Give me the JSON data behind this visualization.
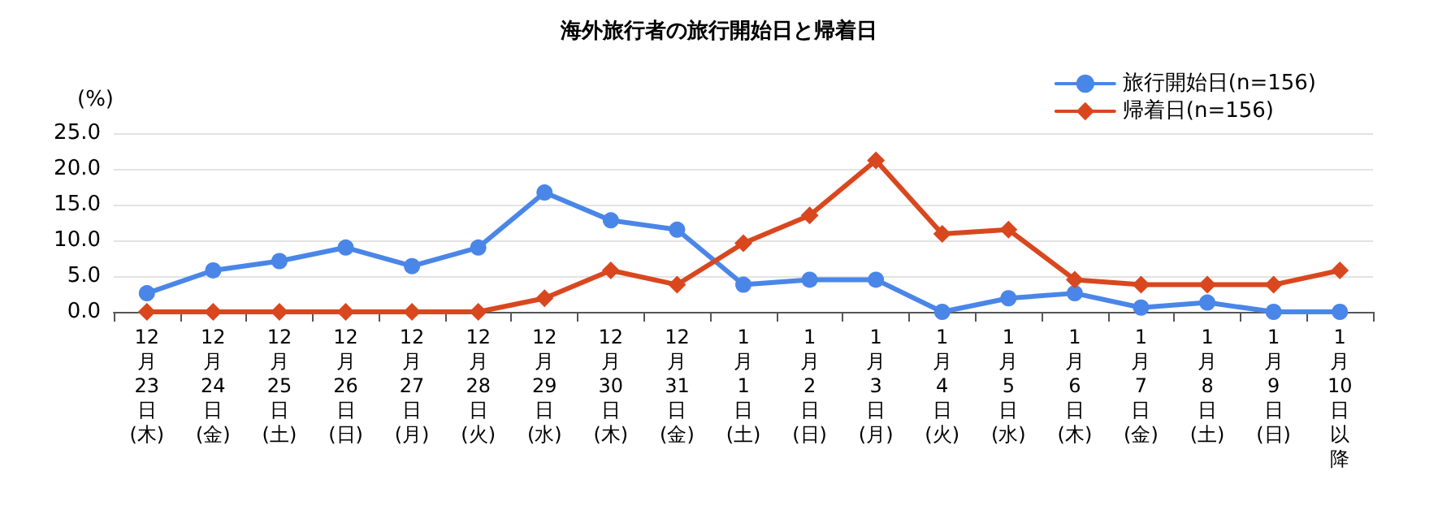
{
  "chart_data": {
    "type": "line",
    "title": "海外旅行者の旅行開始日と帰着日",
    "ylabel": "(%)",
    "categories": [
      "12月23日(木)",
      "12月24日(金)",
      "12月25日(土)",
      "12月26日(日)",
      "12月27日(月)",
      "12月28日(火)",
      "12月29日(水)",
      "12月30日(木)",
      "12月31日(金)",
      "1月1日(土)",
      "1月2日(日)",
      "1月3日(月)",
      "1月4日(火)",
      "1月5日(水)",
      "1月6日(木)",
      "1月7日(金)",
      "1月8日(土)",
      "1月9日(日)",
      "1月10日以降"
    ],
    "series": [
      {
        "name": "旅行開始日(n=156)",
        "color": "#4a86e8",
        "marker": "circle",
        "values": [
          2.6,
          5.8,
          7.1,
          9.0,
          6.4,
          9.0,
          16.7,
          12.8,
          11.5,
          3.8,
          4.5,
          4.5,
          0,
          1.9,
          2.6,
          0.6,
          1.3,
          0,
          0
        ]
      },
      {
        "name": "帰着日(n=156)",
        "color": "#d9471f",
        "marker": "diamond",
        "values": [
          0,
          0,
          0,
          0,
          0,
          0,
          1.9,
          5.8,
          3.8,
          9.6,
          13.5,
          21.2,
          10.9,
          11.5,
          4.5,
          3.8,
          3.8,
          3.8,
          5.8
        ]
      }
    ],
    "ylim": [
      0,
      25
    ],
    "yticks": [
      {
        "value": 0,
        "label": "0.0"
      },
      {
        "value": 5,
        "label": "5.0"
      },
      {
        "value": 10,
        "label": "10.0"
      },
      {
        "value": 15,
        "label": "15.0"
      },
      {
        "value": 20,
        "label": "20.0"
      },
      {
        "value": 25,
        "label": "25.0"
      }
    ],
    "grid": "y",
    "legend": "top right",
    "line_style": "solid"
  }
}
